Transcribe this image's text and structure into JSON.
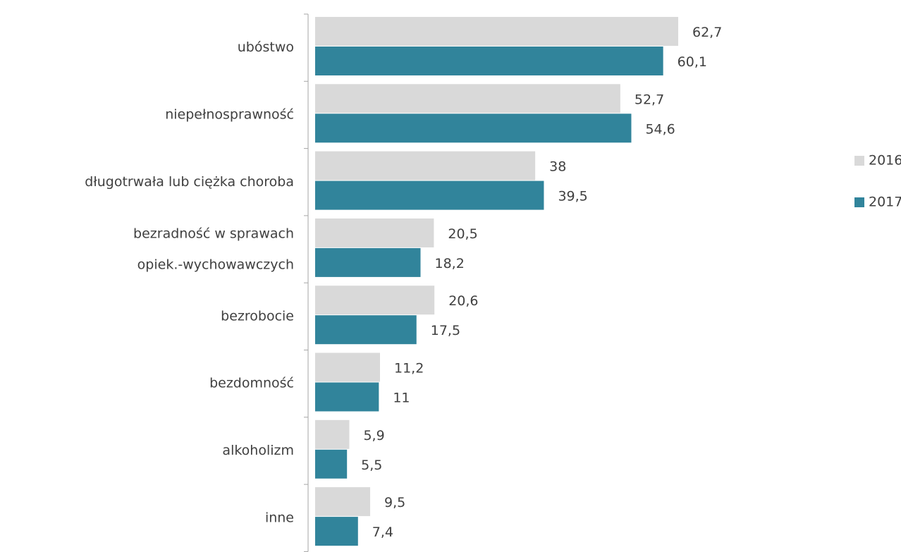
{
  "chart_data": {
    "type": "barh",
    "categories": [
      "ubóstwo",
      "niepełnosprawność",
      "długotrwała lub ciężka choroba",
      "bezradność w sprawach opiek.-wychowawczych",
      "bezrobocie",
      "bezdomność",
      "alkoholizm",
      "inne"
    ],
    "series": [
      {
        "name": "2016",
        "color": "#d9d9d9",
        "values": [
          62.7,
          52.7,
          38,
          20.5,
          20.6,
          11.2,
          5.9,
          9.5
        ],
        "value_labels": [
          "62,7",
          "52,7",
          "38",
          "20,5",
          "20,6",
          "11,2",
          "5,9",
          "9,5"
        ]
      },
      {
        "name": "2017",
        "color": "#31849b",
        "values": [
          60.1,
          54.6,
          39.5,
          18.2,
          17.5,
          11,
          5.5,
          7.4
        ],
        "value_labels": [
          "60,1",
          "54,6",
          "39,5",
          "18,2",
          "17,5",
          "11",
          "5,5",
          "7,4"
        ]
      }
    ],
    "xlim": [
      0,
      70
    ],
    "legend": "right"
  }
}
